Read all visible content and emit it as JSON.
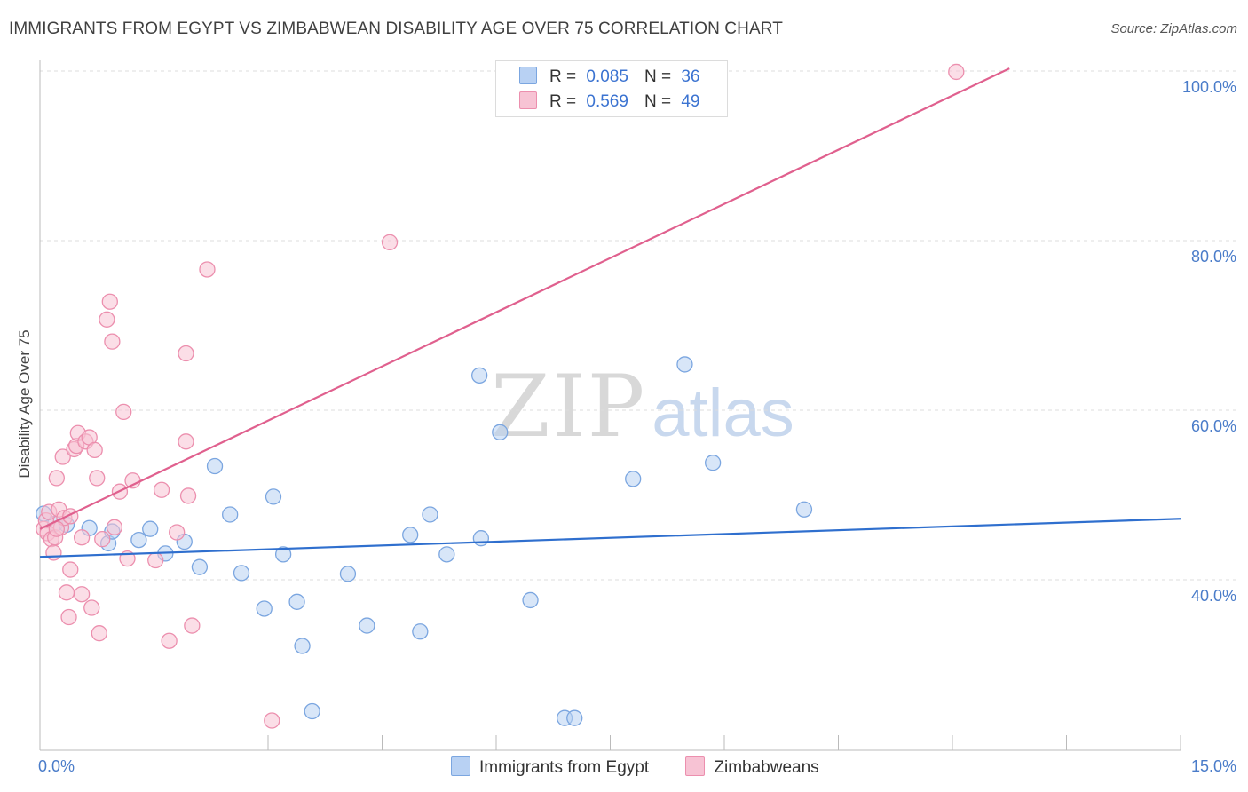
{
  "title": "IMMIGRANTS FROM EGYPT VS ZIMBABWEAN DISABILITY AGE OVER 75 CORRELATION CHART",
  "source": "Source: ZipAtlas.com",
  "watermark": {
    "zip": "ZIP",
    "atlas": "atlas"
  },
  "legend": {
    "egypt": {
      "r_label": "R =",
      "r_value": "0.085",
      "n_label": "N =",
      "n_value": "36"
    },
    "zimbabwe": {
      "r_label": "R =",
      "r_value": "0.569",
      "n_label": "N =",
      "n_value": "49"
    }
  },
  "bottom_legend": {
    "egypt": "Immigrants from Egypt",
    "zimbabwe": "Zimbabweans"
  },
  "colors": {
    "egypt_fill": "#b8d1f3",
    "egypt_stroke": "#7ba6e0",
    "egypt_line": "#2f6fce",
    "zimbabwe_fill": "#f7c3d4",
    "zimbabwe_stroke": "#ec8fae",
    "zimbabwe_line": "#e0608e",
    "grid": "#dddddd",
    "tick_text": "#4a7cc9"
  },
  "chart_data": {
    "type": "scatter",
    "title": "IMMIGRANTS FROM EGYPT VS ZIMBABWEAN DISABILITY AGE OVER 75 CORRELATION CHART",
    "xlabel": "",
    "ylabel": "Disability Age Over 75",
    "xlim": [
      0,
      15
    ],
    "ylim": [
      20,
      102
    ],
    "x_tick_labels": [
      {
        "value": 0,
        "label": "0.0%"
      },
      {
        "value": 15,
        "label": "15.0%"
      }
    ],
    "y_tick_labels": [
      {
        "value": 40,
        "label": "40.0%"
      },
      {
        "value": 60,
        "label": "60.0%"
      },
      {
        "value": 80,
        "label": "80.0%"
      },
      {
        "value": 100,
        "label": "100.0%"
      }
    ],
    "series": [
      {
        "name": "Immigrants from Egypt",
        "key": "egypt",
        "points": [
          [
            0.05,
            47.8
          ],
          [
            0.2,
            46.6
          ],
          [
            0.35,
            46.5
          ],
          [
            0.65,
            46.1
          ],
          [
            0.9,
            44.3
          ],
          [
            0.95,
            45.7
          ],
          [
            1.3,
            44.7
          ],
          [
            1.45,
            46.0
          ],
          [
            1.65,
            43.1
          ],
          [
            1.9,
            44.5
          ],
          [
            2.1,
            41.5
          ],
          [
            2.3,
            53.4
          ],
          [
            2.5,
            47.7
          ],
          [
            2.65,
            40.8
          ],
          [
            2.95,
            36.6
          ],
          [
            3.07,
            49.8
          ],
          [
            3.2,
            43.0
          ],
          [
            3.38,
            37.4
          ],
          [
            3.45,
            32.2
          ],
          [
            3.58,
            24.5
          ],
          [
            4.05,
            40.7
          ],
          [
            4.3,
            34.6
          ],
          [
            4.87,
            45.3
          ],
          [
            5.0,
            33.9
          ],
          [
            5.13,
            47.7
          ],
          [
            5.35,
            43.0
          ],
          [
            5.78,
            64.1
          ],
          [
            5.8,
            44.9
          ],
          [
            6.05,
            57.4
          ],
          [
            6.45,
            37.6
          ],
          [
            6.9,
            23.7
          ],
          [
            7.03,
            23.7
          ],
          [
            7.8,
            51.9
          ],
          [
            8.48,
            65.4
          ],
          [
            8.85,
            53.8
          ],
          [
            10.05,
            48.3
          ]
        ]
      },
      {
        "name": "Zimbabweans",
        "key": "zimbabwe",
        "points": [
          [
            0.05,
            46.0
          ],
          [
            0.08,
            47.0
          ],
          [
            0.1,
            45.5
          ],
          [
            0.12,
            48.0
          ],
          [
            0.15,
            44.8
          ],
          [
            0.18,
            43.2
          ],
          [
            0.2,
            45.0
          ],
          [
            0.22,
            52.0
          ],
          [
            0.25,
            48.3
          ],
          [
            0.28,
            46.2
          ],
          [
            0.3,
            54.5
          ],
          [
            0.32,
            47.3
          ],
          [
            0.35,
            38.5
          ],
          [
            0.38,
            35.6
          ],
          [
            0.4,
            41.2
          ],
          [
            0.45,
            55.4
          ],
          [
            0.48,
            55.8
          ],
          [
            0.5,
            57.3
          ],
          [
            0.55,
            38.3
          ],
          [
            0.55,
            45.0
          ],
          [
            0.6,
            56.3
          ],
          [
            0.65,
            56.8
          ],
          [
            0.68,
            36.7
          ],
          [
            0.72,
            55.3
          ],
          [
            0.75,
            52.0
          ],
          [
            0.78,
            33.7
          ],
          [
            0.82,
            44.8
          ],
          [
            0.88,
            70.7
          ],
          [
            0.92,
            72.8
          ],
          [
            0.95,
            68.1
          ],
          [
            0.98,
            46.2
          ],
          [
            1.05,
            50.4
          ],
          [
            1.1,
            59.8
          ],
          [
            1.15,
            42.5
          ],
          [
            1.22,
            51.7
          ],
          [
            1.52,
            42.3
          ],
          [
            1.6,
            50.6
          ],
          [
            1.7,
            32.8
          ],
          [
            1.8,
            45.6
          ],
          [
            1.92,
            56.3
          ],
          [
            1.92,
            66.7
          ],
          [
            1.95,
            49.9
          ],
          [
            2.0,
            34.6
          ],
          [
            2.2,
            76.6
          ],
          [
            3.05,
            23.4
          ],
          [
            4.6,
            79.8
          ],
          [
            12.05,
            99.9
          ],
          [
            0.4,
            47.5
          ],
          [
            0.22,
            46.0
          ]
        ]
      }
    ],
    "trend_lines": [
      {
        "series": "egypt",
        "x": [
          0,
          15
        ],
        "y": [
          42.7,
          47.2
        ]
      },
      {
        "series": "zimbabwe",
        "x": [
          0,
          12.75
        ],
        "y": [
          46.0,
          100.3
        ]
      }
    ]
  }
}
